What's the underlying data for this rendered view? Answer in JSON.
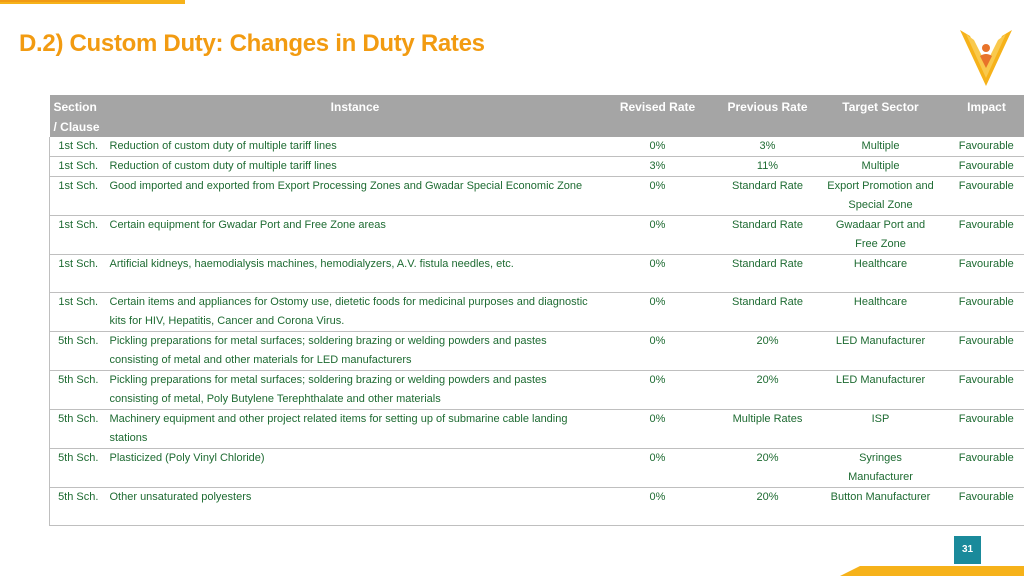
{
  "slide": {
    "title": "D.2) Custom Duty: Changes in Duty Rates",
    "page_number": "31"
  },
  "colors": {
    "title": "#f29b11",
    "header_bg": "#a5a5a5",
    "row_text": "#1e6b32",
    "page_badge": "#1a8a9b",
    "accent": "#f6b21a"
  },
  "table": {
    "headers": {
      "section": "Section / Clause",
      "instance": "Instance",
      "revised": "Revised Rate",
      "previous": "Previous Rate",
      "sector": "Target Sector",
      "impact": "Impact"
    },
    "rows": [
      {
        "section": "1st Sch.",
        "instance": "Reduction of custom duty of multiple tariff lines",
        "revised": "0%",
        "previous": "3%",
        "sector": "Multiple",
        "impact": "Favourable"
      },
      {
        "section": "1st Sch.",
        "instance": "Reduction of custom duty of multiple tariff lines",
        "revised": "3%",
        "previous": "11%",
        "sector": "Multiple",
        "impact": "Favourable"
      },
      {
        "section": "1st Sch.",
        "instance": "Good imported and exported from Export Processing Zones and Gwadar Special Economic Zone",
        "revised": "0%",
        "previous": "Standard Rate",
        "sector": "Export Promotion and Special Zone",
        "impact": "Favourable"
      },
      {
        "section": "1st Sch.",
        "instance": "Certain equipment for Gwadar Port and Free Zone areas",
        "revised": "0%",
        "previous": "Standard Rate",
        "sector": "Gwadaar Port and Free Zone",
        "impact": "Favourable"
      },
      {
        "section": "1st Sch.",
        "instance": "Artificial kidneys, haemodialysis machines, hemodialyzers, A.V. fistula needles, etc.",
        "revised": "0%",
        "previous": "Standard Rate",
        "sector": "Healthcare",
        "impact": "Favourable"
      },
      {
        "section": "1st Sch.",
        "instance": "Certain items and appliances for Ostomy use, dietetic foods for medicinal purposes and diagnostic kits for HIV, Hepatitis, Cancer and Corona Virus.",
        "revised": "0%",
        "previous": "Standard Rate",
        "sector": "Healthcare",
        "impact": "Favourable"
      },
      {
        "section": "5th Sch.",
        "instance": "Pickling preparations for metal surfaces; soldering brazing or welding powders and pastes consisting of metal and other materials for LED manufacturers",
        "revised": "0%",
        "previous": "20%",
        "sector": "LED Manufacturer",
        "impact": "Favourable"
      },
      {
        "section": "5th Sch.",
        "instance": "Pickling preparations for metal surfaces; soldering brazing or welding powders and pastes consisting of metal, Poly Butylene Terephthalate and other materials",
        "revised": "0%",
        "previous": "20%",
        "sector": "LED Manufacturer",
        "impact": "Favourable"
      },
      {
        "section": "5th Sch.",
        "instance": "Machinery equipment and other project related items for setting up of submarine cable landing stations",
        "revised": "0%",
        "previous": "Multiple Rates",
        "sector": "ISP",
        "impact": "Favourable"
      },
      {
        "section": "5th Sch.",
        "instance": "Plasticized (Poly Vinyl Chloride)",
        "revised": "0%",
        "previous": "20%",
        "sector": "Syringes Manufacturer",
        "impact": "Favourable"
      },
      {
        "section": "5th Sch.",
        "instance": "Other unsaturated polyesters",
        "revised": "0%",
        "previous": "20%",
        "sector": "Button Manufacturer",
        "impact": "Favourable"
      }
    ]
  }
}
